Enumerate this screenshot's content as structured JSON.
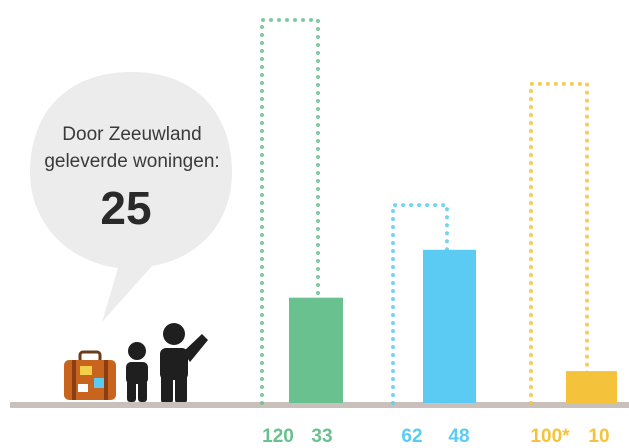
{
  "chart_data": {
    "type": "bar",
    "ylim": [
      0,
      120
    ],
    "colors": [
      "#68c18f",
      "#5ccbf3",
      "#f5c33b"
    ],
    "series": [
      {
        "style": "dotted",
        "values": [
          120,
          62,
          100
        ],
        "value_labels": [
          "120",
          "62",
          "100*"
        ]
      },
      {
        "style": "solid",
        "values": [
          33,
          48,
          10
        ]
      }
    ],
    "annotation": {
      "lines": [
        "Door Zeeuwland",
        "geleverde woningen:"
      ],
      "value": 25
    }
  }
}
